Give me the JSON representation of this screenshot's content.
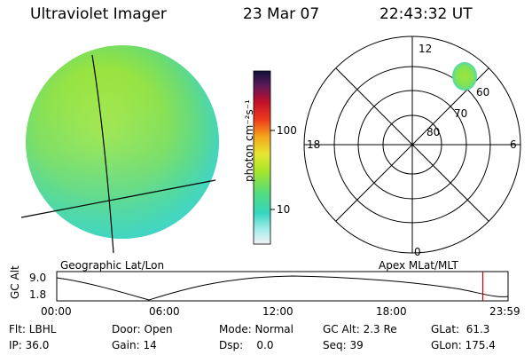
{
  "header": {
    "instrument": "Ultraviolet Imager",
    "date": "23 Mar 07",
    "time": "22:43:32 UT"
  },
  "colorbar": {
    "label": "photon cm⁻²s⁻¹",
    "ticks": [
      "100",
      "10"
    ],
    "scale": "log"
  },
  "polar_plot": {
    "mlt_labels": {
      "top": "12",
      "left": "18",
      "right": "6",
      "bottom": "0"
    },
    "lat_labels": [
      "60",
      "70",
      "80"
    ],
    "caption": "Apex MLat/MLT"
  },
  "globe": {
    "caption": "Geographic Lat/Lon"
  },
  "altitude_strip": {
    "ylabel": "GC Alt",
    "yticks": [
      "9.0",
      "1.8"
    ],
    "xticks": [
      "00:00",
      "06:00",
      "12:00",
      "18:00",
      "23:59"
    ],
    "current_time_marker_fraction": 0.944
  },
  "info": {
    "flt": "Flt: LBHL",
    "ip": "IP: 36.0",
    "door": "Door: Open",
    "gain": "Gain: 14",
    "mode": "Mode: Normal",
    "dsp": "Dsp:    0.0",
    "gcalt": "GC Alt: 2.3 Re",
    "seq": "Seq: 39",
    "glat": "GLat:  61.3",
    "glon": "GLon: 175.4"
  },
  "colors": {
    "marker": "#cc0000",
    "aurora_main": "#a6e62a",
    "aurora_low": "#3fd6c8"
  }
}
